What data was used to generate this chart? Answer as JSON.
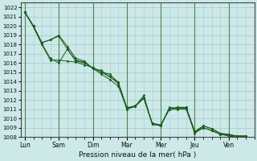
{
  "xlabel": "Pression niveau de la mer( hPa )",
  "ylim": [
    1008,
    1022.5
  ],
  "yticks": [
    1008,
    1009,
    1010,
    1011,
    1012,
    1013,
    1014,
    1015,
    1016,
    1017,
    1018,
    1019,
    1020,
    1021,
    1022
  ],
  "day_labels": [
    "Lun",
    "Sam",
    "Dim",
    "Mar",
    "Mer",
    "Jeu",
    "Ven"
  ],
  "day_positions": [
    0,
    4,
    8,
    12,
    16,
    20,
    24
  ],
  "xlim_max": 27,
  "bg_color": "#cce8e8",
  "grid_color": "#aacccc",
  "line_color": "#1a5c1a",
  "series": [
    [
      1021.5,
      1020.0,
      1018.2,
      1018.5,
      1019.0,
      1017.8,
      1016.5,
      1016.2,
      1015.4,
      1014.8,
      1014.2,
      1013.5,
      1011.1,
      1011.3,
      1012.5,
      1009.4,
      1009.2,
      1011.2,
      1011.1,
      1011.1,
      1008.6,
      1009.0,
      1008.7,
      1008.3,
      1008.2,
      1008.1,
      1008.1
    ],
    [
      1021.5,
      1020.0,
      1018.2,
      1018.5,
      1018.9,
      1017.5,
      1016.2,
      1016.0,
      1015.5,
      1015.0,
      1014.8,
      1013.9,
      1011.2,
      1011.3,
      1012.3,
      1009.4,
      1009.3,
      1011.0,
      1011.2,
      1011.2,
      1008.5,
      1009.2,
      1008.9,
      1008.4,
      1008.2,
      1008.1,
      1008.1
    ],
    [
      1021.5,
      1020.0,
      1018.1,
      1016.5,
      1016.0,
      1017.5,
      1016.3,
      1016.1,
      1015.4,
      1015.2,
      1014.5,
      1013.8,
      1011.1,
      1011.4,
      1012.2,
      1009.5,
      1009.3,
      1011.0,
      1011.2,
      1011.2,
      1008.6,
      1009.2,
      1008.9,
      1008.4,
      1008.3,
      1008.1,
      1008.1
    ],
    [
      1021.5,
      1019.9,
      1018.0,
      1016.3,
      1016.3,
      1016.2,
      1016.1,
      1015.8,
      1015.5,
      1015.0,
      1014.5,
      1013.9,
      1011.0,
      1011.3,
      1012.2,
      1009.4,
      1009.2,
      1011.0,
      1011.0,
      1011.0,
      1008.4,
      1009.0,
      1008.7,
      1008.3,
      1008.1,
      1008.0,
      1008.0
    ]
  ]
}
